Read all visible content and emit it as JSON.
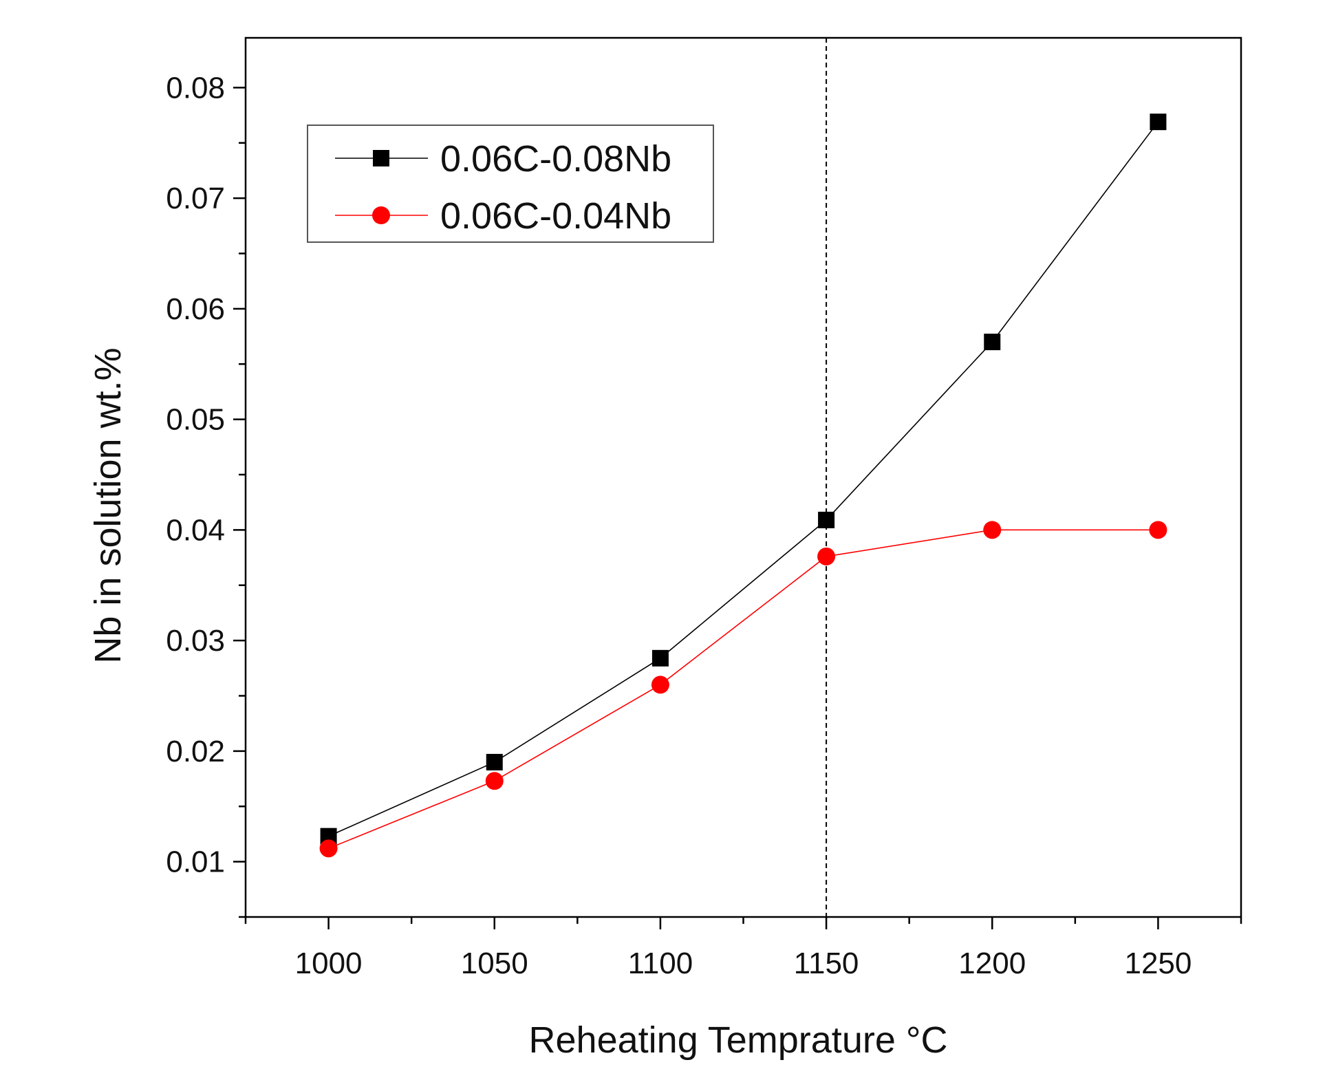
{
  "chart_data": {
    "type": "line",
    "title": "",
    "xlabel": "Reheating Temprature °C",
    "ylabel": "Nb in solution wt.%",
    "xlim": [
      975,
      1275
    ],
    "ylim": [
      0.005,
      0.0845
    ],
    "xticks": [
      1000,
      1050,
      1100,
      1150,
      1200,
      1250
    ],
    "xtick_labels": [
      "1000",
      "1050",
      "1100",
      "1150",
      "1200",
      "1250"
    ],
    "yticks": [
      0.01,
      0.02,
      0.03,
      0.04,
      0.05,
      0.06,
      0.07,
      0.08
    ],
    "ytick_labels": [
      "0.01",
      "0.02",
      "0.03",
      "0.04",
      "0.05",
      "0.06",
      "0.07",
      "0.08"
    ],
    "grid": false,
    "legend_position": "top-left",
    "reference_line": {
      "x": 1150,
      "style": "dashed"
    },
    "x": [
      1000,
      1050,
      1100,
      1150,
      1200,
      1250
    ],
    "series": [
      {
        "name": "0.06C-0.08Nb",
        "marker": "square",
        "color": "#000000",
        "values": [
          0.0123,
          0.019,
          0.0284,
          0.0409,
          0.057,
          0.0769
        ]
      },
      {
        "name": "0.06C-0.04Nb",
        "marker": "circle",
        "color": "#ff0000",
        "values": [
          0.0112,
          0.0173,
          0.026,
          0.0376,
          0.04,
          0.04
        ]
      }
    ]
  }
}
